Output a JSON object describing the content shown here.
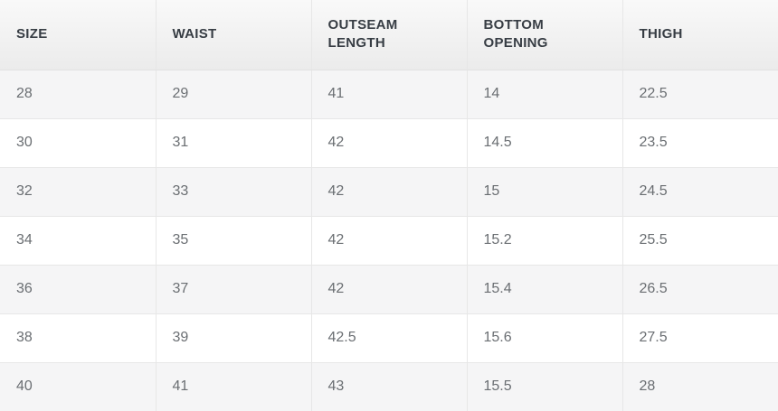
{
  "size_chart": {
    "columns": [
      {
        "key": "size",
        "label": "SIZE"
      },
      {
        "key": "waist",
        "label": "WAIST"
      },
      {
        "key": "outseam-length",
        "label": "OUTSEAM LENGTH"
      },
      {
        "key": "bottom-opening",
        "label": "BOTTOM OPENING"
      },
      {
        "key": "thigh",
        "label": "THIGH"
      }
    ],
    "rows": [
      [
        "28",
        "29",
        "41",
        "14",
        "22.5"
      ],
      [
        "30",
        "31",
        "42",
        "14.5",
        "23.5"
      ],
      [
        "32",
        "33",
        "42",
        "15",
        "24.5"
      ],
      [
        "34",
        "35",
        "42",
        "15.2",
        "25.5"
      ],
      [
        "36",
        "37",
        "42",
        "15.4",
        "26.5"
      ],
      [
        "38",
        "39",
        "42.5",
        "15.6",
        "27.5"
      ],
      [
        "40",
        "41",
        "43",
        "15.5",
        "28"
      ]
    ]
  },
  "chart_data": {
    "type": "table",
    "title": "",
    "columns": [
      "SIZE",
      "WAIST",
      "OUTSEAM LENGTH",
      "BOTTOM OPENING",
      "THIGH"
    ],
    "rows": [
      [
        28,
        29,
        41,
        14,
        22.5
      ],
      [
        30,
        31,
        42,
        14.5,
        23.5
      ],
      [
        32,
        33,
        42,
        15,
        24.5
      ],
      [
        34,
        35,
        42,
        15.2,
        25.5
      ],
      [
        36,
        37,
        42,
        15.4,
        26.5
      ],
      [
        38,
        39,
        42.5,
        15.6,
        27.5
      ],
      [
        40,
        41,
        43,
        15.5,
        28
      ]
    ]
  },
  "colors": {
    "header_bg_top": "#f9f9f9",
    "header_bg_bottom": "#ebebeb",
    "header_text": "#373d44",
    "cell_text": "#6a6e72",
    "row_bg": "#ffffff",
    "row_alt_bg": "#f5f5f6",
    "border": "#e7e7e7"
  }
}
